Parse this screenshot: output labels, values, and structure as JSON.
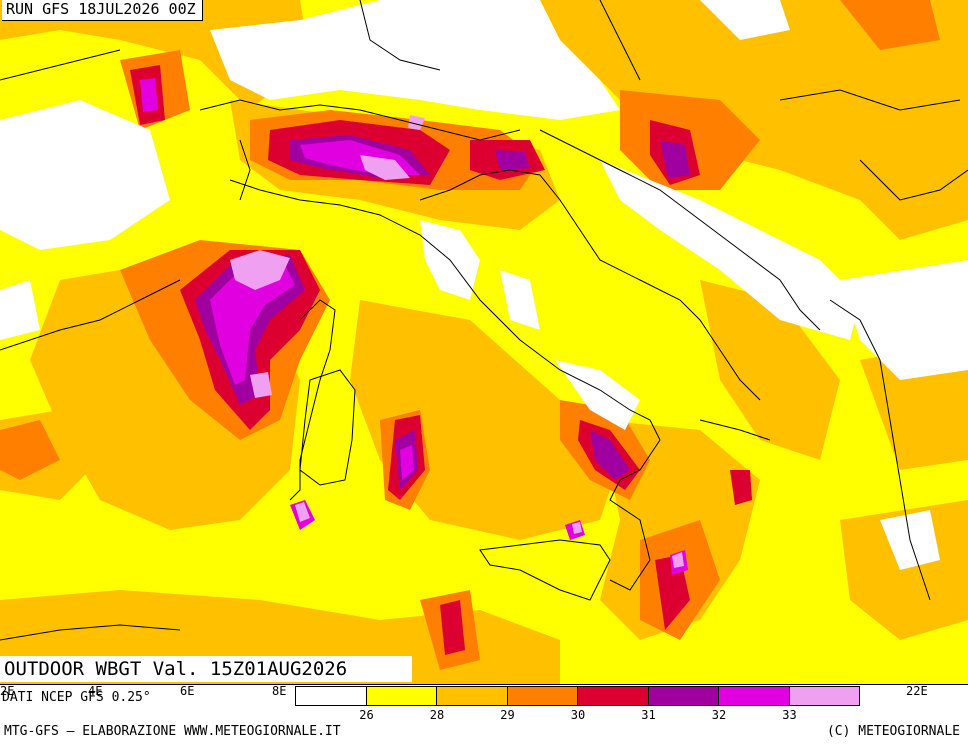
{
  "run_label": "RUN GFS 18JUL2026 00Z",
  "title": "OUTDOOR WBGT Val. 15Z01AUG2026",
  "data_source": "DATI NCEP GFS 0.25°",
  "credits_left": "MTG-GFS – ELABORAZIONE WWW.METEOGIORNALE.IT",
  "credits_right": "(C) METEOGIORNALE",
  "longitude_labels": [
    "2E",
    "4E",
    "6E",
    "8E",
    "22E"
  ],
  "legend": {
    "colors": [
      "#ffffff",
      "#ffff00",
      "#ffc000",
      "#ff8000",
      "#dc0030",
      "#a000a0",
      "#e000e0",
      "#f0a0f0"
    ],
    "thresholds": [
      "26",
      "28",
      "29",
      "30",
      "31",
      "32",
      "33"
    ]
  },
  "colors": {
    "lt26": "#ffffff",
    "w26_28": "#ffff00",
    "w28_29": "#ffc000",
    "w29_30": "#ff8000",
    "w30_31": "#dc0030",
    "w31_32": "#a000a0",
    "w32_33": "#e000e0",
    "w33p": "#f0a0f0"
  }
}
